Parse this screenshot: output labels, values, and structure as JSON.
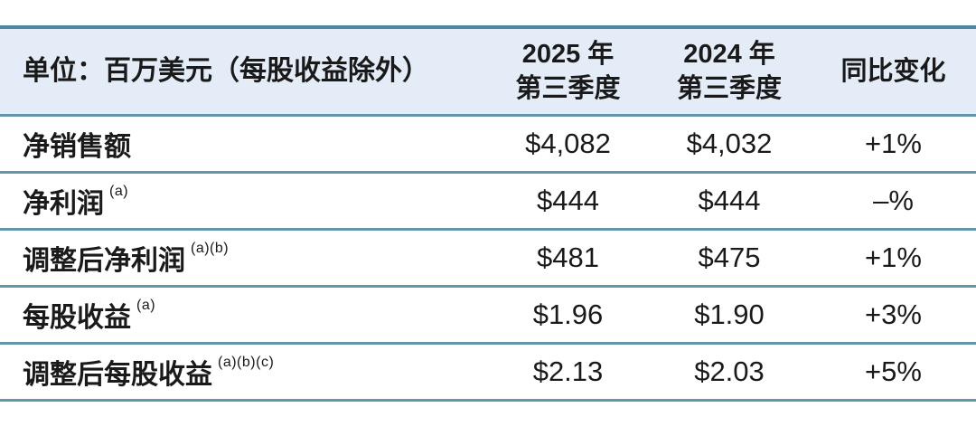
{
  "chart_data": {
    "type": "table",
    "title": "单位：百万美元（每股收益除外）",
    "columns": [
      {
        "line1": "2025 年",
        "line2": "第三季度"
      },
      {
        "line1": "2024 年",
        "line2": "第三季度"
      },
      {
        "line1": "同比变化",
        "line2": ""
      }
    ],
    "rows": [
      {
        "metric": "净销售额",
        "footnote": "",
        "q3_2025": "$4,082",
        "q3_2024": "$4,032",
        "yoy": "+1%"
      },
      {
        "metric": "净利润",
        "footnote": "(a)",
        "q3_2025": "$444",
        "q3_2024": "$444",
        "yoy": "–%"
      },
      {
        "metric": "调整后净利润",
        "footnote": "(a)(b)",
        "q3_2025": "$481",
        "q3_2024": "$475",
        "yoy": "+1%"
      },
      {
        "metric": "每股收益",
        "footnote": "(a)",
        "q3_2025": "$1.96",
        "q3_2024": "$1.90",
        "yoy": "+3%"
      },
      {
        "metric": "调整后每股收益",
        "footnote": "(a)(b)(c)",
        "q3_2025": "$2.13",
        "q3_2024": "$2.03",
        "yoy": "+5%"
      }
    ]
  },
  "colors": {
    "header_bg": "#e4edf7",
    "top_border": "#4d87a3",
    "row_border": "#6396ac",
    "text": "#1a1a1a",
    "row_bg": "#ffffff"
  }
}
